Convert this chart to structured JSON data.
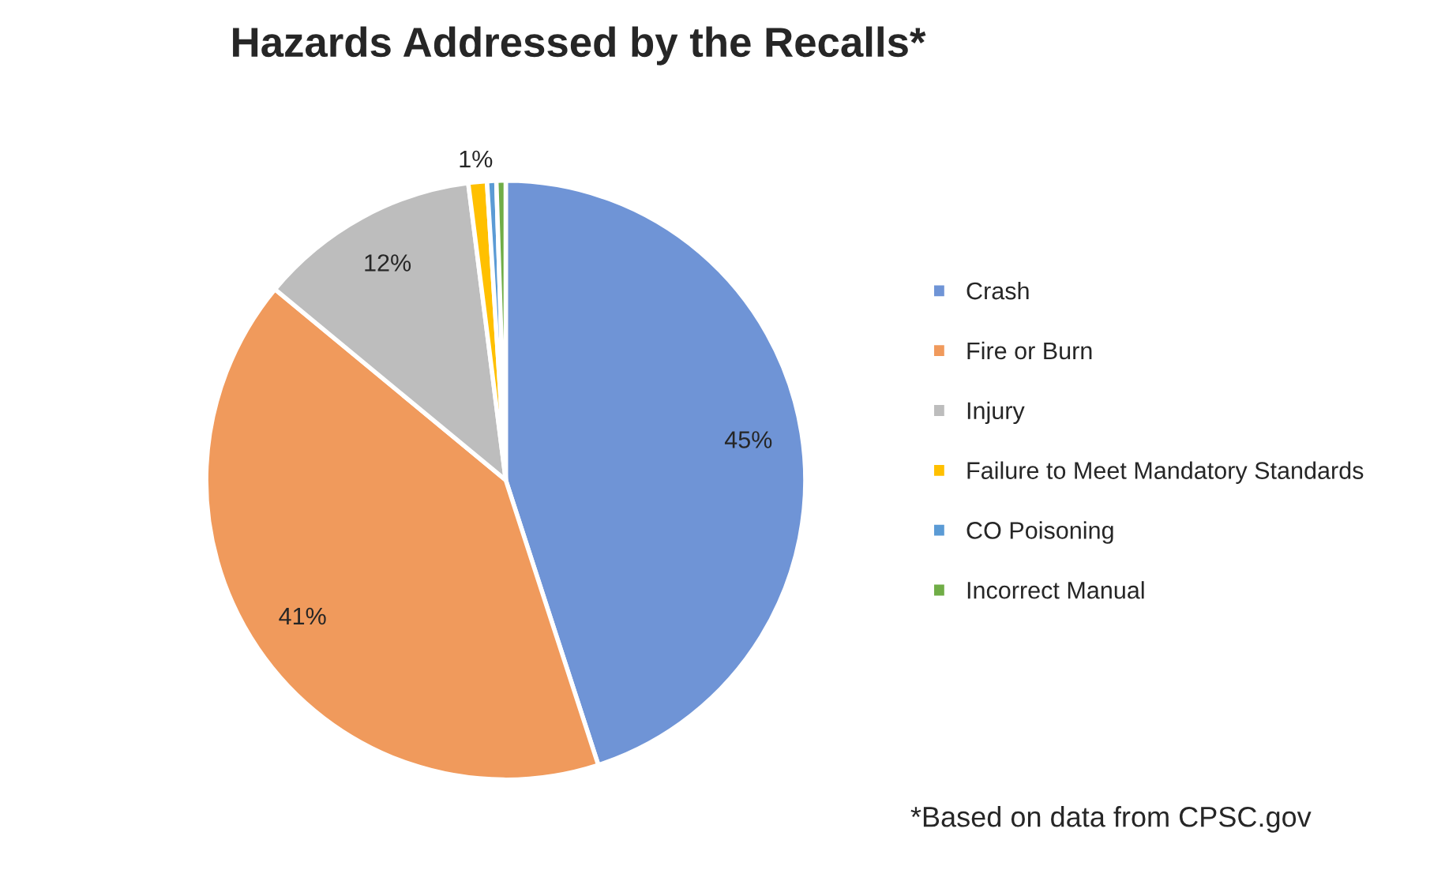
{
  "chart_data": {
    "type": "pie",
    "title": "Hazards Addressed by the Recalls*",
    "categories": [
      "Crash",
      "Fire or Burn",
      "Injury",
      "Failure to Meet Mandatory Standards",
      "CO Poisoning",
      "Incorrect Manual"
    ],
    "values": [
      45,
      41,
      12,
      1,
      0.5,
      0.5
    ],
    "colors": [
      "#6f94d6",
      "#f09a5c",
      "#bdbdbd",
      "#ffc000",
      "#5b9bd5",
      "#70ad47"
    ],
    "value_labels": [
      "45%",
      "41%",
      "12%",
      "1%",
      null,
      null
    ],
    "legend": "right",
    "annotations": [
      "*Based on data from CPSC.gov"
    ]
  }
}
